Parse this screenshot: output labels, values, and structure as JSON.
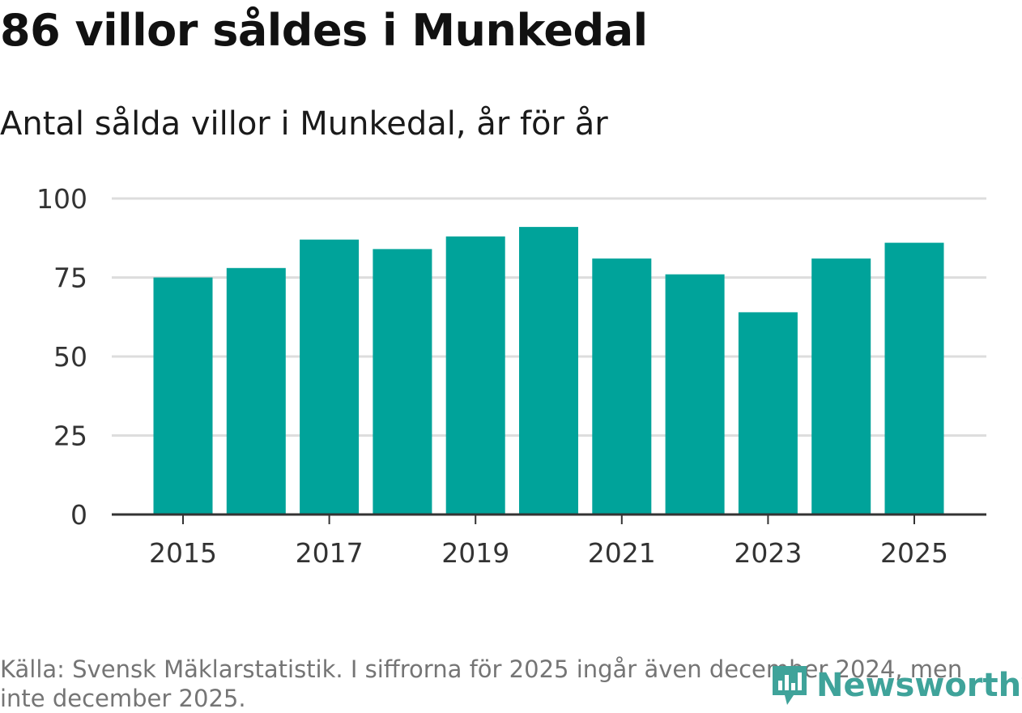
{
  "header": {
    "title": "86 villor såldes i Munkedal",
    "subtitle": "Antal sålda villor i Munkedal, år för år"
  },
  "footer": {
    "source": "Källa: Svensk Mäklarstatistik. I siffrorna för 2025 ingår även december 2024, men inte december 2025.",
    "brand": "Newsworthy"
  },
  "colors": {
    "bar": "#00a39a",
    "grid": "#dddddd",
    "axis": "#333333",
    "brand": "#3fa39a"
  },
  "chart_data": {
    "type": "bar",
    "title": "Antal sålda villor i Munkedal, år för år",
    "xlabel": "",
    "ylabel": "",
    "categories": [
      "2015",
      "2016",
      "2017",
      "2018",
      "2019",
      "2020",
      "2021",
      "2022",
      "2023",
      "2024",
      "2025"
    ],
    "values": [
      75,
      78,
      87,
      84,
      88,
      91,
      81,
      76,
      64,
      81,
      86
    ],
    "x_tick_labels": [
      "2015",
      "2017",
      "2019",
      "2021",
      "2023",
      "2025"
    ],
    "y_ticks": [
      0,
      25,
      50,
      75,
      100
    ],
    "ylim": [
      0,
      100
    ],
    "grid": true,
    "legend": "none"
  }
}
